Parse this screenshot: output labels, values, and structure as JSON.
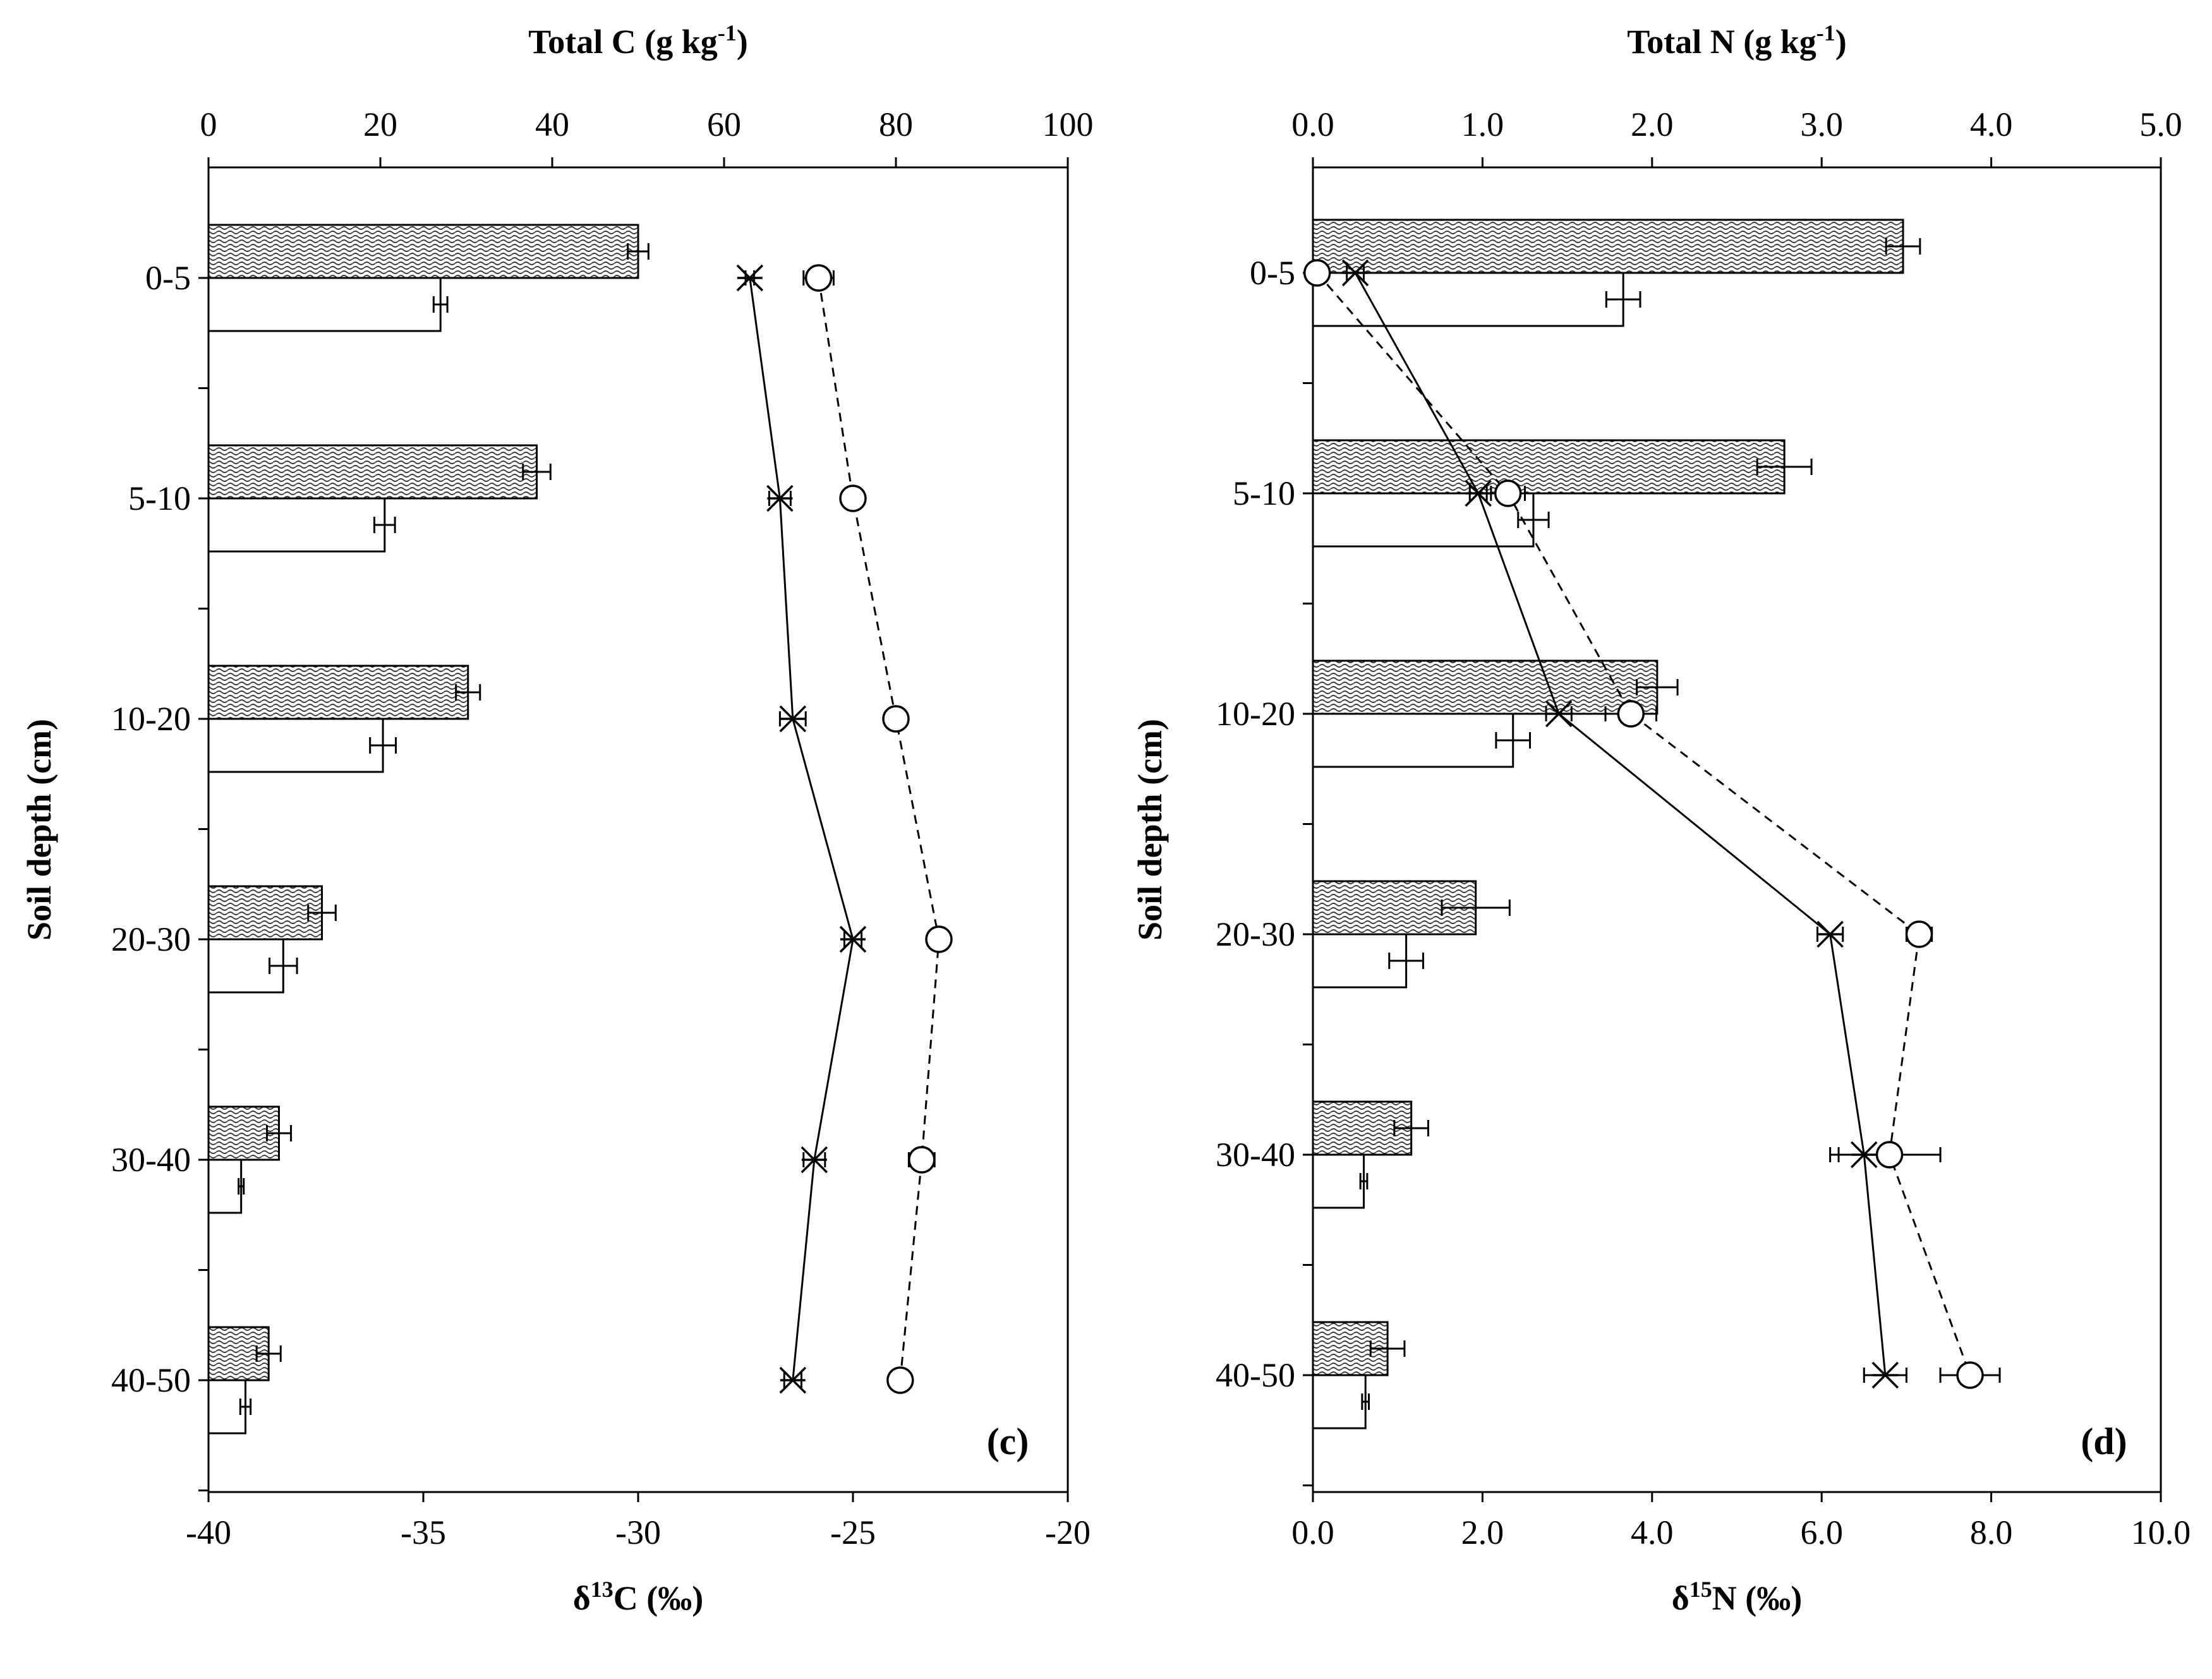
{
  "chart_data": [
    {
      "type": "bar",
      "panel_label": "(c)",
      "categories": [
        "0-5",
        "5-10",
        "10-20",
        "20-30",
        "30-40",
        "40-50"
      ],
      "ylabel": "Soil depth (cm)",
      "top_axis": {
        "title_main": "Total C (g kg",
        "title_sup": "-1",
        "title_end": ")",
        "range": [
          0,
          100
        ],
        "ticks": [
          0,
          20,
          40,
          60,
          80,
          100
        ],
        "tick_labels": [
          "0",
          "20",
          "40",
          "60",
          "80",
          "100"
        ]
      },
      "bottom_axis": {
        "title_main": "δ",
        "title_sup": "13",
        "title_end": "C (‰)",
        "range": [
          -40,
          -20
        ],
        "ticks": [
          -40,
          -35,
          -30,
          -25,
          -20
        ],
        "tick_labels": [
          "-40",
          "-35",
          "-30",
          "-25",
          "-20"
        ]
      },
      "bar_series": [
        {
          "name": "Total C (hatched)",
          "pattern": "hatched",
          "values": [
            50,
            38.2,
            30.2,
            13.2,
            8.2,
            7.0
          ],
          "errors": [
            1.2,
            1.6,
            1.4,
            1.6,
            1.4,
            1.4
          ]
        },
        {
          "name": "Total C (open)",
          "pattern": "open",
          "values": [
            27,
            20.5,
            20.3,
            8.7,
            3.8,
            4.3
          ],
          "errors": [
            0.8,
            1.2,
            1.5,
            1.6,
            0.3,
            0.6
          ]
        }
      ],
      "line_series": [
        {
          "name": "δ13C (asterisk, solid)",
          "marker": "asterisk",
          "dash": "solid",
          "values": [
            -27.4,
            -26.7,
            -26.4,
            -25.0,
            -25.9,
            -26.4
          ],
          "errors": [
            0.1,
            0.25,
            0.3,
            0.2,
            0.25,
            0.2
          ]
        },
        {
          "name": "δ13C (circle, dashed)",
          "marker": "circle",
          "dash": "dashed",
          "values": [
            -25.8,
            -25.0,
            -24.0,
            -23.0,
            -23.4,
            -23.9
          ],
          "errors": [
            0.35,
            0.2,
            0.2,
            0.15,
            0.3,
            0.15
          ]
        }
      ]
    },
    {
      "type": "bar",
      "panel_label": "(d)",
      "categories": [
        "0-5",
        "5-10",
        "10-20",
        "20-30",
        "30-40",
        "40-50"
      ],
      "ylabel": "Soil depth (cm)",
      "top_axis": {
        "title_main": "Total N (g kg",
        "title_sup": "-1",
        "title_end": ")",
        "range": [
          0,
          5
        ],
        "ticks": [
          0,
          1,
          2,
          3,
          4,
          5
        ],
        "tick_labels": [
          "0.0",
          "1.0",
          "2.0",
          "3.0",
          "4.0",
          "5.0"
        ]
      },
      "bottom_axis": {
        "title_main": "δ",
        "title_sup": "15",
        "title_end": "N (‰)",
        "range": [
          0,
          10
        ],
        "ticks": [
          0,
          2,
          4,
          6,
          8,
          10
        ],
        "tick_labels": [
          "0.0",
          "2.0",
          "4.0",
          "6.0",
          "8.0",
          "10.0"
        ]
      },
      "bar_series": [
        {
          "name": "Total N (hatched)",
          "pattern": "hatched",
          "values": [
            3.48,
            2.78,
            2.03,
            0.96,
            0.58,
            0.44
          ],
          "errors": [
            0.1,
            0.16,
            0.12,
            0.2,
            0.1,
            0.1
          ]
        },
        {
          "name": "Total N (open)",
          "pattern": "open",
          "values": [
            1.83,
            1.3,
            1.18,
            0.55,
            0.3,
            0.31
          ],
          "errors": [
            0.1,
            0.09,
            0.1,
            0.1,
            0.02,
            0.02
          ]
        }
      ],
      "line_series": [
        {
          "name": "δ15N (asterisk, solid)",
          "marker": "asterisk",
          "dash": "solid",
          "values": [
            0.5,
            1.95,
            2.9,
            6.1,
            6.5,
            6.75
          ],
          "errors": [
            0.1,
            0.1,
            0.15,
            0.15,
            0.4,
            0.25
          ]
        },
        {
          "name": "δ15N (circle, dashed)",
          "marker": "circle",
          "dash": "dashed",
          "values": [
            0.05,
            2.3,
            3.75,
            7.15,
            6.8,
            7.75
          ],
          "errors": [
            0.05,
            0.2,
            0.3,
            0.15,
            0.6,
            0.35
          ]
        }
      ]
    }
  ]
}
